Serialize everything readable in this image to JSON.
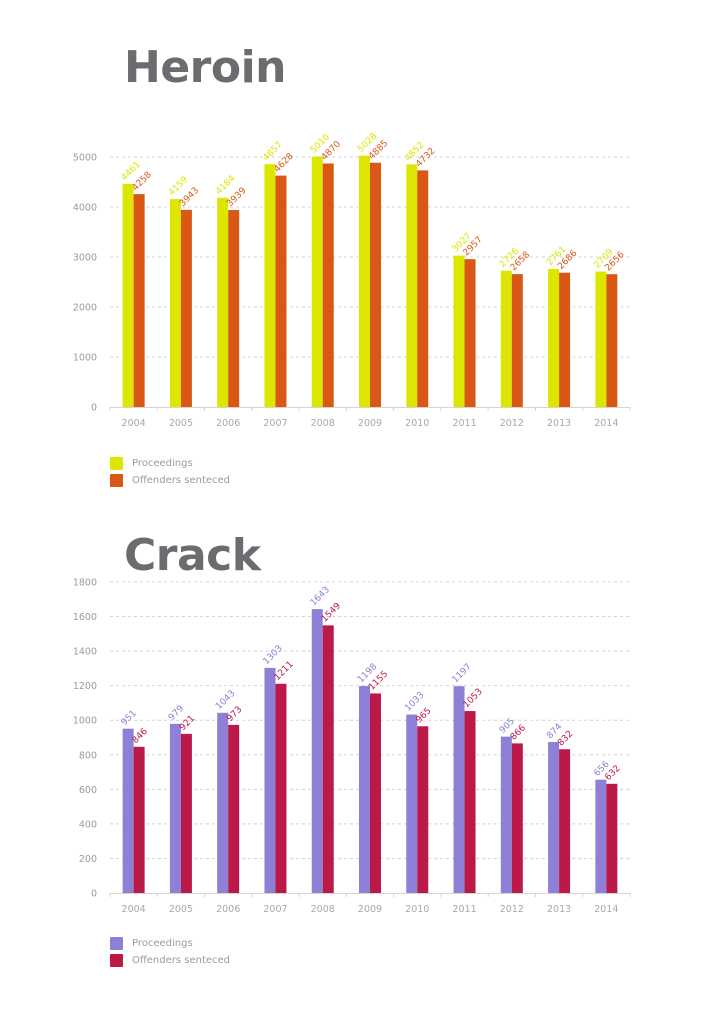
{
  "chart_data": [
    {
      "type": "bar",
      "title": "Heroin",
      "xlabel": "",
      "ylabel": "",
      "categories": [
        "2004",
        "2005",
        "2006",
        "2007",
        "2008",
        "2009",
        "2010",
        "2011",
        "2012",
        "2013",
        "2014"
      ],
      "series": [
        {
          "name": "Proceedings",
          "color": "#dde600",
          "values": [
            4461,
            4159,
            4184,
            4857,
            5010,
            5028,
            4852,
            3027,
            2726,
            2761,
            2709
          ]
        },
        {
          "name": "Offenders senteced",
          "color": "#d95816",
          "values": [
            4258,
            3943,
            3939,
            4628,
            4870,
            4885,
            4732,
            2957,
            2658,
            2686,
            2656
          ]
        }
      ],
      "ylim": [
        0,
        5000
      ],
      "yticks": [
        "0",
        "1000",
        "2000",
        "3000",
        "4000",
        "5000"
      ],
      "ytick_values": [
        0,
        1000,
        2000,
        3000,
        4000,
        5000
      ],
      "grid": true,
      "legend": "bottom-left"
    },
    {
      "type": "bar",
      "title": "Crack",
      "xlabel": "",
      "ylabel": "",
      "categories": [
        "2004",
        "2005",
        "2006",
        "2007",
        "2008",
        "2009",
        "2010",
        "2011",
        "2012",
        "2013",
        "2014"
      ],
      "series": [
        {
          "name": "Proceedings",
          "color": "#8e80d6",
          "values": [
            951,
            979,
            1043,
            1303,
            1643,
            1198,
            1033,
            1197,
            905,
            874,
            656
          ]
        },
        {
          "name": "Offenders senteced",
          "color": "#bb1a48",
          "values": [
            846,
            921,
            973,
            1211,
            1549,
            1155,
            965,
            1053,
            866,
            832,
            632
          ]
        }
      ],
      "ylim": [
        0,
        1800
      ],
      "yticks": [
        "0",
        "200",
        "400",
        "600",
        "800",
        "1000",
        "1200",
        "1400",
        "1600",
        "1800"
      ],
      "ytick_values": [
        0,
        200,
        400,
        600,
        800,
        1000,
        1200,
        1400,
        1600,
        1800
      ],
      "grid": true,
      "legend": "bottom-left"
    }
  ]
}
